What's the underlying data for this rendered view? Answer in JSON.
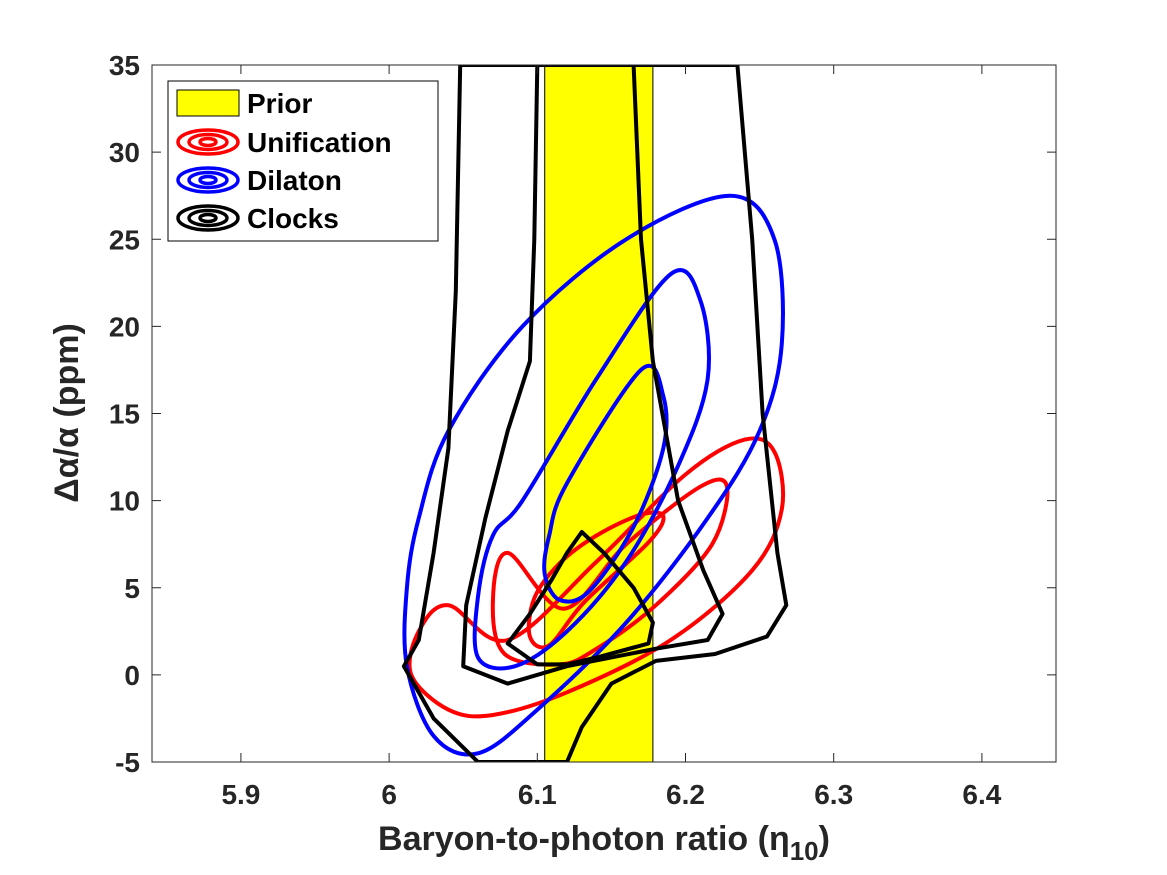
{
  "chart_data": {
    "type": "contour",
    "xlabel": "Baryon-to-photon ratio (η",
    "xlabel_sub": "10",
    "xlabel_close": ")",
    "ylabel": "Δα/α (ppm)",
    "xlim": [
      5.84,
      6.45
    ],
    "ylim": [
      -5,
      35
    ],
    "xticks": [
      5.9,
      6.0,
      6.1,
      6.2,
      6.3,
      6.4
    ],
    "xtick_labels": [
      "5.9",
      "6",
      "6.1",
      "6.2",
      "6.3",
      "6.4"
    ],
    "yticks": [
      -5,
      0,
      5,
      10,
      15,
      20,
      25,
      30,
      35
    ],
    "ytick_labels": [
      "-5",
      "0",
      "5",
      "10",
      "15",
      "20",
      "25",
      "30",
      "35"
    ],
    "legend_position": "top-left",
    "prior": {
      "name": "Prior",
      "x_range": [
        6.105,
        6.178
      ],
      "color": "#ffff00"
    },
    "series": [
      {
        "name": "Unification",
        "color": "#ff0000",
        "contours": [
          [
            [
              6.132,
              4.2
            ],
            [
              6.175,
              7.6
            ],
            [
              6.185,
              9.1
            ],
            [
              6.17,
              9.2
            ],
            [
              6.14,
              8.0
            ],
            [
              6.115,
              6.4
            ],
            [
              6.098,
              4.4
            ],
            [
              6.095,
              2.2
            ],
            [
              6.108,
              1.7
            ],
            [
              6.132,
              4.2
            ]
          ],
          [
            [
              6.118,
              3.8
            ],
            [
              6.16,
              7.5
            ],
            [
              6.21,
              10.8
            ],
            [
              6.228,
              10.8
            ],
            [
              6.218,
              7.5
            ],
            [
              6.18,
              4.0
            ],
            [
              6.14,
              1.5
            ],
            [
              6.115,
              0.6
            ],
            [
              6.078,
              1.2
            ],
            [
              6.07,
              4.2
            ],
            [
              6.08,
              7.0
            ],
            [
              6.118,
              3.8
            ]
          ],
          [
            [
              6.08,
              2.0
            ],
            [
              6.14,
              6.5
            ],
            [
              6.2,
              11.5
            ],
            [
              6.24,
              13.5
            ],
            [
              6.26,
              12.8
            ],
            [
              6.265,
              9.5
            ],
            [
              6.245,
              6.0
            ],
            [
              6.19,
              2.0
            ],
            [
              6.12,
              -1.0
            ],
            [
              6.07,
              -2.3
            ],
            [
              6.04,
              -2.0
            ],
            [
              6.015,
              0.0
            ],
            [
              6.02,
              2.5
            ],
            [
              6.04,
              4.0
            ],
            [
              6.08,
              2.0
            ]
          ]
        ]
      },
      {
        "name": "Dilaton",
        "color": "#0000ff",
        "contours": [
          [
            [
              6.12,
              11.0
            ],
            [
              6.17,
              17.5
            ],
            [
              6.185,
              16.0
            ],
            [
              6.185,
              13.0
            ],
            [
              6.165,
              8.5
            ],
            [
              6.135,
              4.8
            ],
            [
              6.115,
              4.3
            ],
            [
              6.105,
              5.8
            ],
            [
              6.108,
              8.0
            ],
            [
              6.12,
              11.0
            ]
          ],
          [
            [
              6.09,
              10.0
            ],
            [
              6.14,
              17.0
            ],
            [
              6.19,
              23.0
            ],
            [
              6.21,
              21.5
            ],
            [
              6.215,
              17.0
            ],
            [
              6.195,
              12.0
            ],
            [
              6.16,
              6.5
            ],
            [
              6.12,
              2.5
            ],
            [
              6.085,
              0.5
            ],
            [
              6.06,
              1.0
            ],
            [
              6.06,
              4.5
            ],
            [
              6.07,
              8.0
            ],
            [
              6.09,
              10.0
            ]
          ],
          [
            [
              6.04,
              14.0
            ],
            [
              6.09,
              20.0
            ],
            [
              6.16,
              25.0
            ],
            [
              6.23,
              27.5
            ],
            [
              6.26,
              25.0
            ],
            [
              6.265,
              19.0
            ],
            [
              6.25,
              14.0
            ],
            [
              6.215,
              9.0
            ],
            [
              6.16,
              3.0
            ],
            [
              6.1,
              -2.0
            ],
            [
              6.06,
              -4.5
            ],
            [
              6.03,
              -3.5
            ],
            [
              6.012,
              0.5
            ],
            [
              6.012,
              5.0
            ],
            [
              6.02,
              9.0
            ],
            [
              6.04,
              14.0
            ]
          ]
        ]
      },
      {
        "name": "Clocks",
        "color": "#000000",
        "contours": [
          [
            [
              6.12,
              7.0
            ],
            [
              6.13,
              8.2
            ],
            [
              6.145,
              7.0
            ],
            [
              6.165,
              5.0
            ],
            [
              6.178,
              3.0
            ],
            [
              6.175,
              1.8
            ],
            [
              6.14,
              1.0
            ],
            [
              6.12,
              0.6
            ],
            [
              6.1,
              0.6
            ],
            [
              6.08,
              1.8
            ],
            [
              6.095,
              3.5
            ],
            [
              6.11,
              5.5
            ],
            [
              6.12,
              7.0
            ]
          ],
          [
            [
              6.052,
              4.0
            ],
            [
              6.065,
              9.0
            ],
            [
              6.08,
              14.0
            ],
            [
              6.095,
              18.0
            ],
            [
              6.098,
              25.0
            ],
            [
              6.1,
              35.0
            ],
            [
              6.165,
              35.0
            ],
            [
              6.17,
              25.0
            ],
            [
              6.178,
              18.0
            ],
            [
              6.195,
              10.0
            ],
            [
              6.212,
              6.0
            ],
            [
              6.225,
              3.5
            ],
            [
              6.215,
              2.0
            ],
            [
              6.18,
              1.5
            ],
            [
              6.12,
              0.5
            ],
            [
              6.08,
              -0.5
            ],
            [
              6.05,
              0.5
            ],
            [
              6.052,
              4.0
            ]
          ],
          [
            [
              6.02,
              2.0
            ],
            [
              6.03,
              7.0
            ],
            [
              6.04,
              13.0
            ],
            [
              6.045,
              22.0
            ],
            [
              6.048,
              35.0
            ],
            [
              6.235,
              35.0
            ],
            [
              6.245,
              25.0
            ],
            [
              6.252,
              15.0
            ],
            [
              6.262,
              7.0
            ],
            [
              6.268,
              4.0
            ],
            [
              6.255,
              2.2
            ],
            [
              6.22,
              1.2
            ],
            [
              6.18,
              0.8
            ],
            [
              6.15,
              -0.5
            ],
            [
              6.13,
              -3.0
            ],
            [
              6.12,
              -5.0
            ],
            [
              6.06,
              -5.0
            ],
            [
              6.03,
              -2.5
            ],
            [
              6.01,
              0.5
            ],
            [
              6.02,
              2.0
            ]
          ]
        ]
      }
    ]
  }
}
